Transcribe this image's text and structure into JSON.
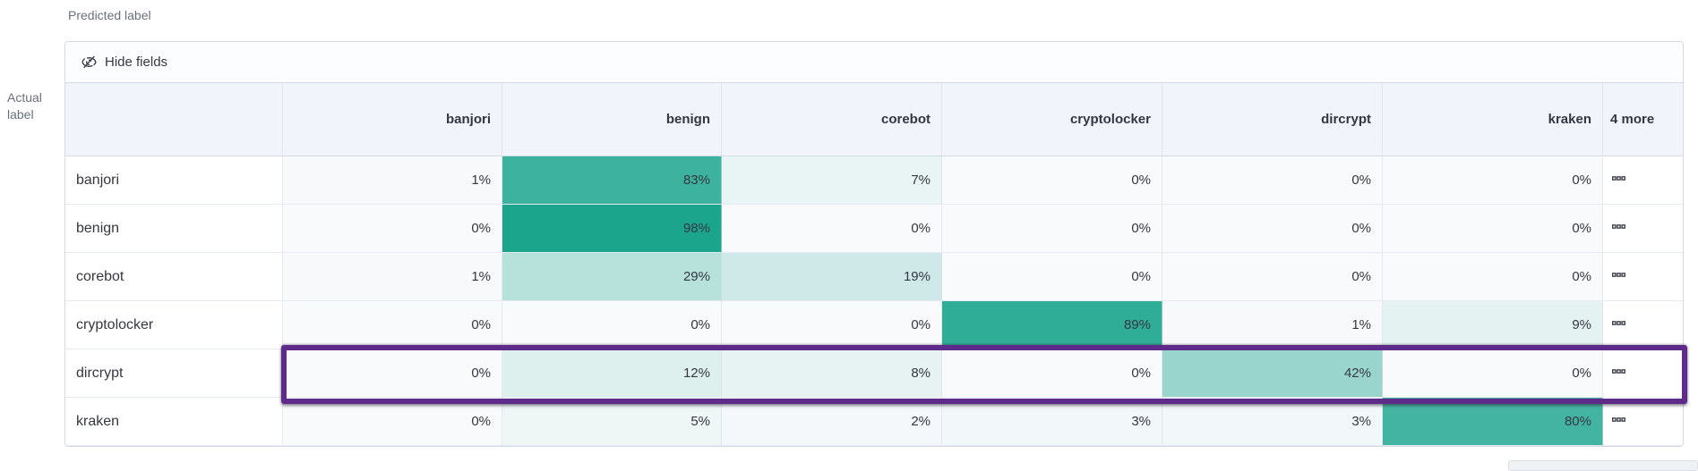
{
  "labels": {
    "predicted_axis": "Predicted label",
    "actual_axis": "Actual label"
  },
  "toolbar": {
    "hide_fields_label": "Hide fields"
  },
  "chart_data": {
    "type": "heatmap",
    "x_axis_label": "Predicted label",
    "y_axis_label": "Actual label",
    "columns": [
      "banjori",
      "benign",
      "corebot",
      "cryptolocker",
      "dircrypt",
      "kraken"
    ],
    "hidden_columns_label": "4 more",
    "rows": [
      "banjori",
      "benign",
      "corebot",
      "cryptolocker",
      "dircrypt",
      "kraken"
    ],
    "values_percent": [
      [
        1,
        83,
        7,
        0,
        0,
        0
      ],
      [
        0,
        98,
        0,
        0,
        0,
        0
      ],
      [
        1,
        29,
        19,
        0,
        0,
        0
      ],
      [
        0,
        0,
        0,
        89,
        1,
        9
      ],
      [
        0,
        12,
        8,
        0,
        42,
        0
      ],
      [
        0,
        5,
        2,
        3,
        3,
        80
      ]
    ],
    "cell_format": "percent",
    "color_scale": {
      "zero_color": "#F9FAFC",
      "full_color": "#17A38B"
    },
    "row_actions_icon": "boxes-horizontal-icon",
    "highlight": {
      "row": "dircrypt",
      "color": "#5E2B8A"
    }
  }
}
